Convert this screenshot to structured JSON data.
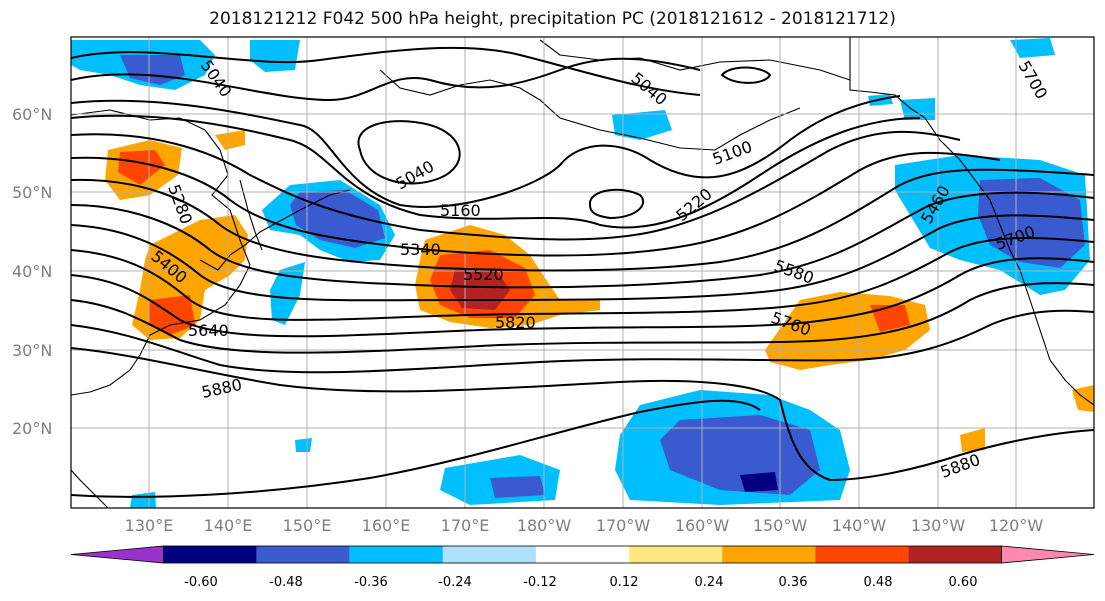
{
  "title": "2018121212 F042 500 hPa height, precipitation PC (2018121612 - 2018121712)",
  "lat_labels": [
    "60°N",
    "50°N",
    "40°N",
    "30°N",
    "20°N"
  ],
  "lon_labels": [
    "130°E",
    "140°E",
    "150°E",
    "160°E",
    "170°E",
    "180°W",
    "170°W",
    "160°W",
    "150°W",
    "140°W",
    "130°W",
    "120°W"
  ],
  "contour_labels": [
    "5040",
    "5040",
    "5040",
    "5100",
    "5160",
    "5220",
    "5280",
    "5340",
    "5400",
    "5460",
    "5520",
    "5580",
    "5640",
    "5700",
    "5760",
    "5820",
    "5880",
    "5880",
    "5700"
  ],
  "colorbar": {
    "labels": [
      "-0.60",
      "-0.48",
      "-0.36",
      "-0.24",
      "-0.12",
      "0.12",
      "0.24",
      "0.36",
      "0.48",
      "0.60"
    ],
    "colors": [
      "#9933cc",
      "#000080",
      "#3a5bd0",
      "#00bfff",
      "#b0e0ff",
      "#ffffff",
      "#ffe97f",
      "#ffa500",
      "#ff4500",
      "#b22222",
      "#ff88b0"
    ]
  }
}
